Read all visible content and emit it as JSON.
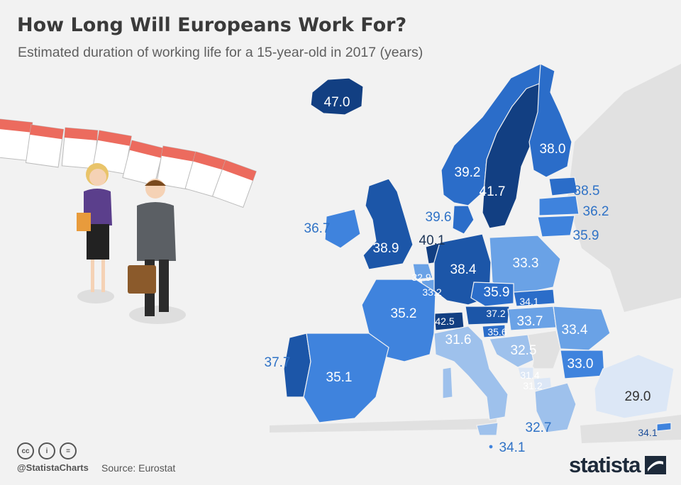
{
  "title": "How Long Will Europeans Work For?",
  "subtitle": "Estimated duration of working life for a 15-year-old in 2017 (years)",
  "colors": {
    "background": "#f2f2f2",
    "land_other": "#e1e1e1",
    "scale": [
      "#dce7f6",
      "#9ec1ec",
      "#6aa2e6",
      "#3f83dd",
      "#2b6dc9",
      "#1c56a8",
      "#123f82"
    ]
  },
  "countries": [
    {
      "name": "Iceland",
      "value": "47.0"
    },
    {
      "name": "Sweden",
      "value": "41.7"
    },
    {
      "name": "Finland",
      "value": "38.0"
    },
    {
      "name": "Norway",
      "value": "39.2"
    },
    {
      "name": "Estonia",
      "value": "38.5"
    },
    {
      "name": "Latvia",
      "value": "36.2"
    },
    {
      "name": "Lithuania",
      "value": "35.9"
    },
    {
      "name": "Denmark",
      "value": "39.6"
    },
    {
      "name": "Ireland",
      "value": "36.7"
    },
    {
      "name": "United Kingdom",
      "value": "38.9"
    },
    {
      "name": "Netherlands",
      "value": "40.1"
    },
    {
      "name": "Belgium",
      "value": "32.9"
    },
    {
      "name": "Luxembourg",
      "value": "33.2"
    },
    {
      "name": "Germany",
      "value": "38.4"
    },
    {
      "name": "Poland",
      "value": "33.3"
    },
    {
      "name": "Czechia",
      "value": "35.9"
    },
    {
      "name": "Slovakia",
      "value": "34.1"
    },
    {
      "name": "Austria",
      "value": "37.2"
    },
    {
      "name": "Switzerland",
      "value": "42.5"
    },
    {
      "name": "Slovenia",
      "value": "35.6"
    },
    {
      "name": "Hungary",
      "value": "33.7"
    },
    {
      "name": "Romania",
      "value": "33.4"
    },
    {
      "name": "France",
      "value": "35.2"
    },
    {
      "name": "Italy",
      "value": "31.6"
    },
    {
      "name": "Croatia",
      "value": "32.5"
    },
    {
      "name": "Montenegro",
      "value": "31.4"
    },
    {
      "name": "North Macedonia",
      "value": "31.2"
    },
    {
      "name": "Bulgaria",
      "value": "33.0"
    },
    {
      "name": "Portugal",
      "value": "37.7"
    },
    {
      "name": "Spain",
      "value": "35.1"
    },
    {
      "name": "Greece",
      "value": "32.7"
    },
    {
      "name": "Turkey",
      "value": "29.0"
    },
    {
      "name": "Malta",
      "value": "34.1"
    },
    {
      "name": "Cyprus",
      "value": "34.1"
    }
  ],
  "footer": {
    "handle": "@StatistaCharts",
    "source": "Source: Eurostat",
    "cc_icons": [
      "cc-icon",
      "by-icon",
      "nd-icon"
    ],
    "logo": "statista"
  }
}
